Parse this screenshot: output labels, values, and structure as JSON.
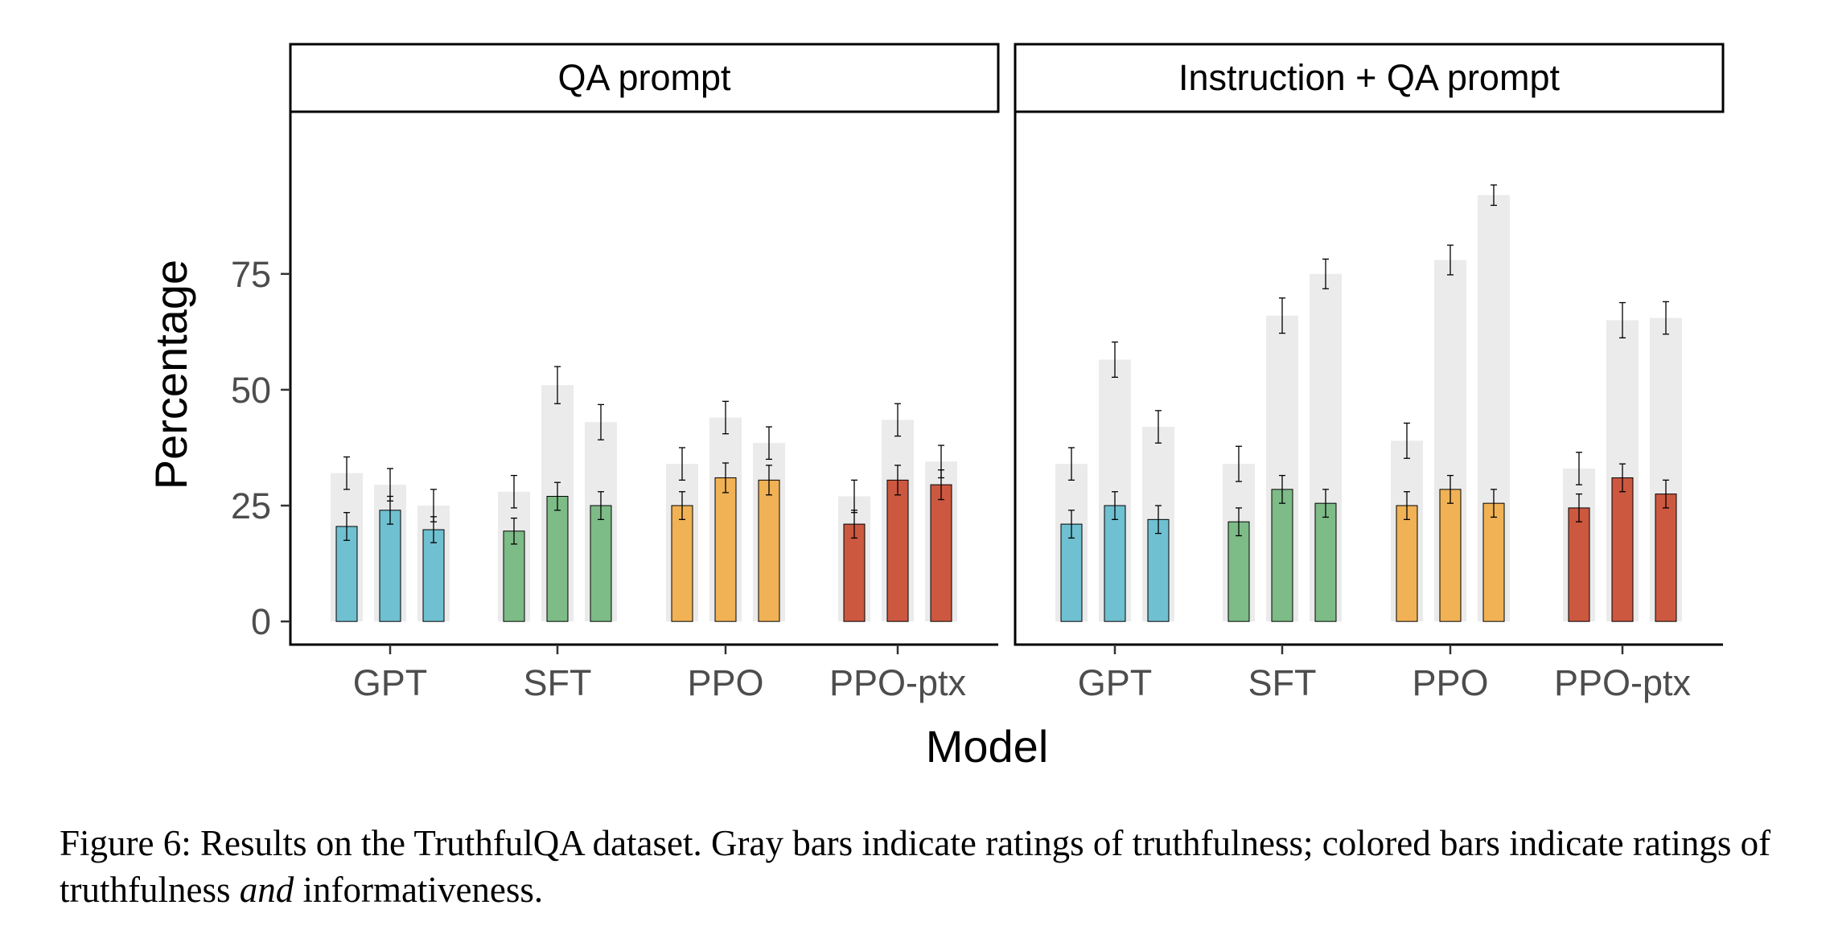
{
  "chart_data": {
    "type": "bar",
    "xlabel": "Model",
    "ylabel": "Percentage",
    "ylim": [
      -5,
      110
    ],
    "yticks": [
      0,
      25,
      50,
      75
    ],
    "ytick_labels": [
      "0",
      "25",
      "50",
      "75"
    ],
    "categories": [
      "GPT",
      "SFT",
      "PPO",
      "PPO-ptx"
    ],
    "bars_per_category": 3,
    "colors": {
      "GPT": "#6fc0d0",
      "SFT": "#7dbb87",
      "PPO": "#f0b255",
      "PPO-ptx": "#cc5840",
      "gray": "#ebebeb",
      "frame": "#000000",
      "tick_label": "#4d4d4d"
    },
    "panels": [
      {
        "title": "QA prompt",
        "gray": [
          [
            32,
            29.5,
            25
          ],
          [
            28,
            51,
            43
          ],
          [
            34,
            44,
            38.5
          ],
          [
            27,
            43.5,
            34.5
          ]
        ],
        "gray_err": [
          [
            3.5,
            3.5,
            3.5
          ],
          [
            3.5,
            4,
            3.8
          ],
          [
            3.5,
            3.5,
            3.5
          ],
          [
            3.5,
            3.5,
            3.5
          ]
        ],
        "colored": [
          [
            20.5,
            24,
            19.8
          ],
          [
            19.5,
            27,
            25
          ],
          [
            25,
            31,
            30.5
          ],
          [
            21,
            30.5,
            29.5
          ]
        ],
        "colored_err": [
          [
            3,
            3,
            2.8
          ],
          [
            2.8,
            3,
            3
          ],
          [
            3,
            3.2,
            3.2
          ],
          [
            3,
            3.2,
            3.2
          ]
        ]
      },
      {
        "title": "Instruction + QA prompt",
        "gray": [
          [
            34,
            56.5,
            42
          ],
          [
            34,
            66,
            75
          ],
          [
            39,
            78,
            92
          ],
          [
            33,
            65,
            65.5
          ]
        ],
        "gray_err": [
          [
            3.5,
            3.8,
            3.5
          ],
          [
            3.8,
            3.8,
            3.2
          ],
          [
            3.8,
            3.2,
            2.2
          ],
          [
            3.5,
            3.8,
            3.5
          ]
        ],
        "colored": [
          [
            21,
            25,
            22
          ],
          [
            21.5,
            28.5,
            25.5
          ],
          [
            25,
            28.5,
            25.5
          ],
          [
            24.5,
            31,
            27.5
          ]
        ],
        "colored_err": [
          [
            3,
            3,
            3
          ],
          [
            3,
            3,
            3
          ],
          [
            3,
            3,
            3
          ],
          [
            3,
            3,
            3
          ]
        ]
      }
    ]
  },
  "caption": {
    "lead": "Figure 6: Results on the TruthfulQA dataset. Gray bars indicate ratings of truthfulness; colored bars indicate ratings of truthfulness",
    "emph": "and",
    "tail": "informativeness."
  }
}
